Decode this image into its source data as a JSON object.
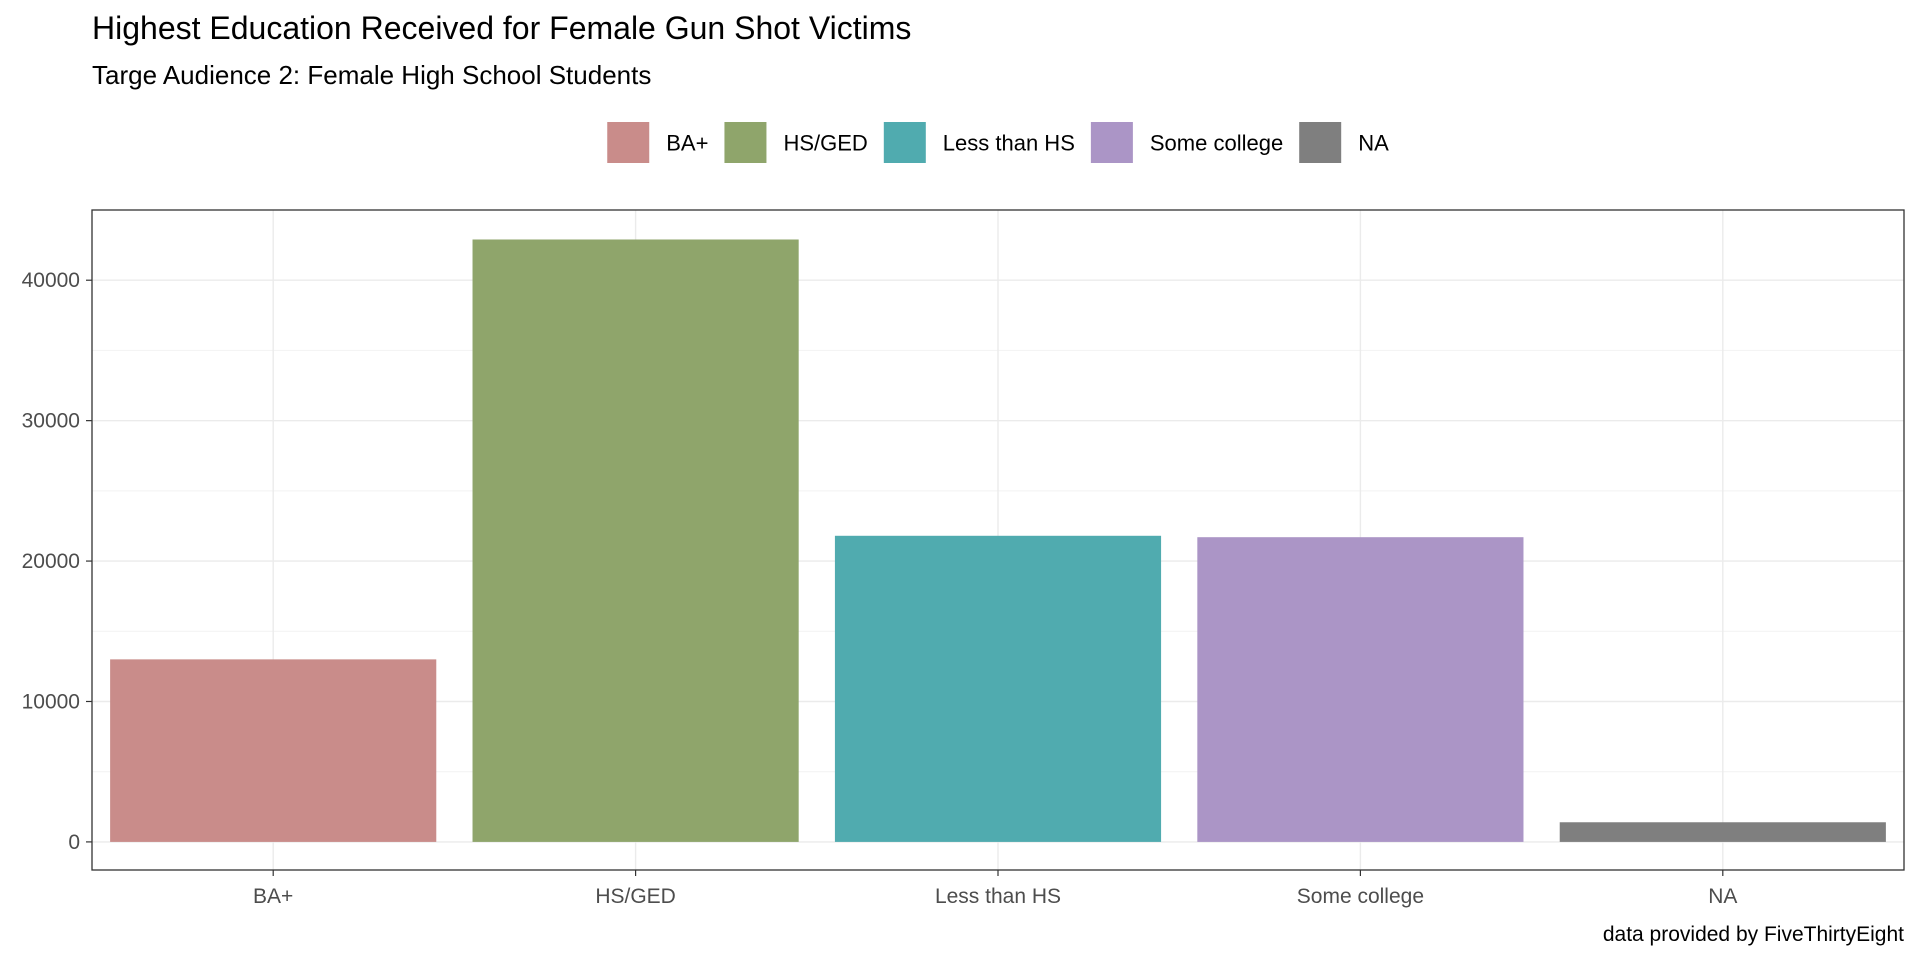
{
  "chart_data": {
    "type": "bar",
    "title": "Highest Education Received for Female Gun Shot Victims",
    "subtitle": "Targe Audience 2: Female High School Students",
    "caption": "data provided by FiveThirtyEight",
    "categories": [
      "BA+",
      "HS/GED",
      "Less than HS",
      "Some college",
      "NA"
    ],
    "values": [
      13000,
      42900,
      21800,
      21700,
      1400
    ],
    "colors": [
      "#c98c8a",
      "#8fa56b",
      "#50abaf",
      "#ab95c6",
      "#7f7f7f"
    ],
    "legend": {
      "position": "top",
      "entries": [
        "BA+",
        "HS/GED",
        "Less than HS",
        "Some college",
        "NA"
      ]
    },
    "ylim": [
      -2000,
      45000
    ],
    "yticks": [
      0,
      10000,
      20000,
      30000,
      40000
    ],
    "ytick_labels": [
      "0",
      "10000",
      "20000",
      "30000",
      "40000"
    ],
    "grid": true,
    "xlabel": "",
    "ylabel": ""
  }
}
